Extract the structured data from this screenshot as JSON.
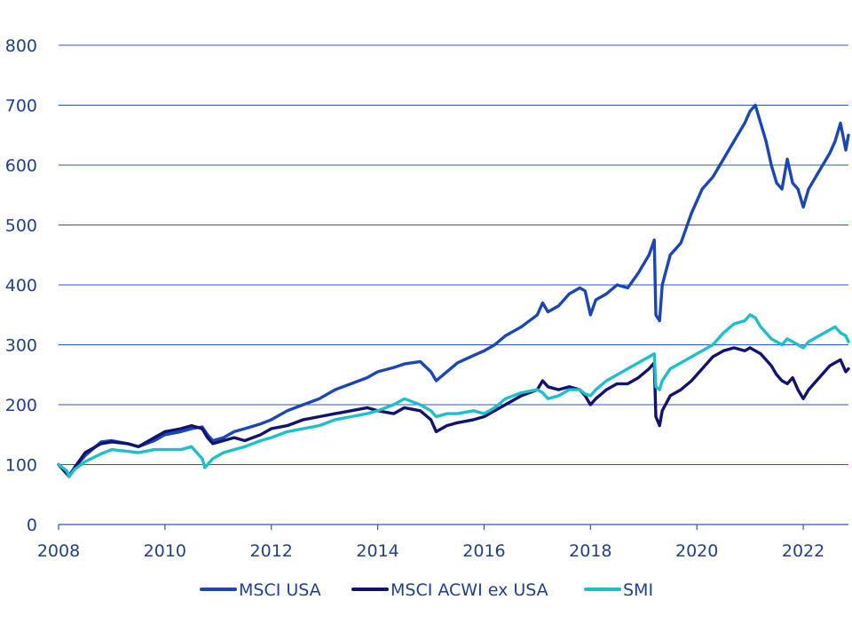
{
  "chart_data": {
    "type": "line",
    "title": "",
    "xlabel": "",
    "ylabel": "",
    "xlim": [
      2008,
      2022.85
    ],
    "ylim": [
      0,
      800
    ],
    "y_ticks": [
      0,
      100,
      200,
      300,
      400,
      500,
      600,
      700,
      800
    ],
    "x_ticks": [
      2008,
      2010,
      2012,
      2014,
      2016,
      2018,
      2020,
      2022
    ],
    "y_tick_labels": [
      "0",
      "100",
      "200",
      "300",
      "400",
      "500",
      "600",
      "700",
      "800"
    ],
    "x_tick_labels": [
      "2008",
      "2010",
      "2012",
      "2014",
      "2016",
      "2018",
      "2020",
      "2022"
    ],
    "grid": "horizontal",
    "legend_position": "bottom",
    "series": [
      {
        "name": "MSCI USA",
        "color": "#1a46b8",
        "points": [
          [
            2008.0,
            100
          ],
          [
            2008.15,
            88
          ],
          [
            2008.2,
            82
          ],
          [
            2008.3,
            95
          ],
          [
            2008.5,
            115
          ],
          [
            2008.8,
            138
          ],
          [
            2009.0,
            140
          ],
          [
            2009.3,
            135
          ],
          [
            2009.5,
            130
          ],
          [
            2009.8,
            140
          ],
          [
            2010.0,
            150
          ],
          [
            2010.3,
            155
          ],
          [
            2010.5,
            160
          ],
          [
            2010.7,
            163
          ],
          [
            2010.8,
            150
          ],
          [
            2010.9,
            140
          ],
          [
            2011.1,
            145
          ],
          [
            2011.3,
            155
          ],
          [
            2011.5,
            160
          ],
          [
            2011.8,
            168
          ],
          [
            2012.0,
            175
          ],
          [
            2012.3,
            190
          ],
          [
            2012.6,
            200
          ],
          [
            2012.9,
            210
          ],
          [
            2013.2,
            225
          ],
          [
            2013.5,
            235
          ],
          [
            2013.8,
            245
          ],
          [
            2014.0,
            255
          ],
          [
            2014.3,
            262
          ],
          [
            2014.5,
            268
          ],
          [
            2014.8,
            272
          ],
          [
            2015.0,
            255
          ],
          [
            2015.1,
            240
          ],
          [
            2015.3,
            255
          ],
          [
            2015.5,
            270
          ],
          [
            2015.8,
            282
          ],
          [
            2016.0,
            290
          ],
          [
            2016.2,
            300
          ],
          [
            2016.4,
            315
          ],
          [
            2016.7,
            330
          ],
          [
            2017.0,
            350
          ],
          [
            2017.1,
            370
          ],
          [
            2017.2,
            355
          ],
          [
            2017.4,
            365
          ],
          [
            2017.6,
            385
          ],
          [
            2017.8,
            395
          ],
          [
            2017.9,
            390
          ],
          [
            2018.0,
            350
          ],
          [
            2018.1,
            375
          ],
          [
            2018.3,
            385
          ],
          [
            2018.5,
            400
          ],
          [
            2018.7,
            395
          ],
          [
            2018.9,
            420
          ],
          [
            2019.1,
            450
          ],
          [
            2019.2,
            475
          ],
          [
            2019.23,
            350
          ],
          [
            2019.3,
            340
          ],
          [
            2019.35,
            400
          ],
          [
            2019.5,
            450
          ],
          [
            2019.7,
            470
          ],
          [
            2019.9,
            520
          ],
          [
            2020.1,
            560
          ],
          [
            2020.3,
            580
          ],
          [
            2020.5,
            610
          ],
          [
            2020.7,
            640
          ],
          [
            2020.9,
            670
          ],
          [
            2021.0,
            690
          ],
          [
            2021.1,
            700
          ],
          [
            2021.2,
            670
          ],
          [
            2021.3,
            640
          ],
          [
            2021.4,
            600
          ],
          [
            2021.5,
            570
          ],
          [
            2021.6,
            560
          ],
          [
            2021.7,
            610
          ],
          [
            2021.8,
            570
          ],
          [
            2021.9,
            560
          ],
          [
            2022.0,
            530
          ],
          [
            2022.1,
            560
          ],
          [
            2022.3,
            590
          ],
          [
            2022.5,
            620
          ],
          [
            2022.6,
            640
          ],
          [
            2022.7,
            670
          ],
          [
            2022.8,
            625
          ],
          [
            2022.85,
            650
          ]
        ]
      },
      {
        "name": "MSCI ACWI ex USA",
        "color": "#121270",
        "points": [
          [
            2008.0,
            100
          ],
          [
            2008.15,
            85
          ],
          [
            2008.2,
            80
          ],
          [
            2008.3,
            95
          ],
          [
            2008.5,
            120
          ],
          [
            2008.8,
            135
          ],
          [
            2009.0,
            138
          ],
          [
            2009.3,
            135
          ],
          [
            2009.5,
            130
          ],
          [
            2009.8,
            145
          ],
          [
            2010.0,
            155
          ],
          [
            2010.3,
            160
          ],
          [
            2010.5,
            165
          ],
          [
            2010.7,
            160
          ],
          [
            2010.8,
            145
          ],
          [
            2010.9,
            135
          ],
          [
            2011.1,
            140
          ],
          [
            2011.3,
            145
          ],
          [
            2011.5,
            140
          ],
          [
            2011.8,
            150
          ],
          [
            2012.0,
            160
          ],
          [
            2012.3,
            165
          ],
          [
            2012.6,
            175
          ],
          [
            2012.9,
            180
          ],
          [
            2013.2,
            185
          ],
          [
            2013.5,
            190
          ],
          [
            2013.8,
            195
          ],
          [
            2014.0,
            190
          ],
          [
            2014.3,
            185
          ],
          [
            2014.5,
            195
          ],
          [
            2014.8,
            190
          ],
          [
            2015.0,
            175
          ],
          [
            2015.1,
            155
          ],
          [
            2015.3,
            165
          ],
          [
            2015.5,
            170
          ],
          [
            2015.8,
            175
          ],
          [
            2016.0,
            180
          ],
          [
            2016.2,
            190
          ],
          [
            2016.4,
            200
          ],
          [
            2016.7,
            215
          ],
          [
            2017.0,
            225
          ],
          [
            2017.1,
            240
          ],
          [
            2017.2,
            230
          ],
          [
            2017.4,
            225
          ],
          [
            2017.6,
            230
          ],
          [
            2017.8,
            225
          ],
          [
            2017.9,
            215
          ],
          [
            2018.0,
            200
          ],
          [
            2018.1,
            210
          ],
          [
            2018.3,
            225
          ],
          [
            2018.5,
            235
          ],
          [
            2018.7,
            235
          ],
          [
            2018.9,
            245
          ],
          [
            2019.1,
            260
          ],
          [
            2019.2,
            270
          ],
          [
            2019.23,
            180
          ],
          [
            2019.3,
            165
          ],
          [
            2019.35,
            190
          ],
          [
            2019.5,
            215
          ],
          [
            2019.7,
            225
          ],
          [
            2019.9,
            240
          ],
          [
            2020.1,
            260
          ],
          [
            2020.3,
            280
          ],
          [
            2020.5,
            290
          ],
          [
            2020.7,
            295
          ],
          [
            2020.9,
            290
          ],
          [
            2021.0,
            295
          ],
          [
            2021.1,
            290
          ],
          [
            2021.2,
            285
          ],
          [
            2021.3,
            275
          ],
          [
            2021.4,
            265
          ],
          [
            2021.5,
            250
          ],
          [
            2021.6,
            240
          ],
          [
            2021.7,
            235
          ],
          [
            2021.8,
            245
          ],
          [
            2021.9,
            225
          ],
          [
            2022.0,
            210
          ],
          [
            2022.1,
            225
          ],
          [
            2022.3,
            245
          ],
          [
            2022.5,
            265
          ],
          [
            2022.6,
            270
          ],
          [
            2022.7,
            275
          ],
          [
            2022.8,
            255
          ],
          [
            2022.85,
            260
          ]
        ]
      },
      {
        "name": "SMI",
        "color": "#1ebfc8",
        "points": [
          [
            2008.0,
            100
          ],
          [
            2008.15,
            90
          ],
          [
            2008.2,
            80
          ],
          [
            2008.3,
            92
          ],
          [
            2008.5,
            105
          ],
          [
            2008.8,
            118
          ],
          [
            2009.0,
            125
          ],
          [
            2009.3,
            122
          ],
          [
            2009.5,
            120
          ],
          [
            2009.8,
            125
          ],
          [
            2010.0,
            125
          ],
          [
            2010.3,
            125
          ],
          [
            2010.5,
            130
          ],
          [
            2010.7,
            110
          ],
          [
            2010.75,
            95
          ],
          [
            2010.9,
            110
          ],
          [
            2011.1,
            120
          ],
          [
            2011.3,
            125
          ],
          [
            2011.5,
            130
          ],
          [
            2011.8,
            140
          ],
          [
            2012.0,
            145
          ],
          [
            2012.3,
            155
          ],
          [
            2012.6,
            160
          ],
          [
            2012.9,
            165
          ],
          [
            2013.2,
            175
          ],
          [
            2013.5,
            180
          ],
          [
            2013.8,
            185
          ],
          [
            2014.0,
            190
          ],
          [
            2014.3,
            200
          ],
          [
            2014.5,
            210
          ],
          [
            2014.8,
            200
          ],
          [
            2015.0,
            190
          ],
          [
            2015.1,
            180
          ],
          [
            2015.3,
            185
          ],
          [
            2015.5,
            185
          ],
          [
            2015.8,
            190
          ],
          [
            2016.0,
            185
          ],
          [
            2016.2,
            195
          ],
          [
            2016.4,
            210
          ],
          [
            2016.7,
            220
          ],
          [
            2017.0,
            225
          ],
          [
            2017.1,
            220
          ],
          [
            2017.2,
            210
          ],
          [
            2017.4,
            215
          ],
          [
            2017.6,
            225
          ],
          [
            2017.8,
            225
          ],
          [
            2017.9,
            218
          ],
          [
            2018.0,
            215
          ],
          [
            2018.1,
            225
          ],
          [
            2018.3,
            240
          ],
          [
            2018.5,
            250
          ],
          [
            2018.7,
            260
          ],
          [
            2018.9,
            270
          ],
          [
            2019.1,
            280
          ],
          [
            2019.2,
            285
          ],
          [
            2019.23,
            230
          ],
          [
            2019.3,
            225
          ],
          [
            2019.35,
            240
          ],
          [
            2019.5,
            260
          ],
          [
            2019.7,
            270
          ],
          [
            2019.9,
            280
          ],
          [
            2020.1,
            290
          ],
          [
            2020.3,
            300
          ],
          [
            2020.5,
            320
          ],
          [
            2020.7,
            335
          ],
          [
            2020.9,
            340
          ],
          [
            2021.0,
            350
          ],
          [
            2021.1,
            345
          ],
          [
            2021.2,
            330
          ],
          [
            2021.3,
            320
          ],
          [
            2021.4,
            310
          ],
          [
            2021.5,
            305
          ],
          [
            2021.6,
            300
          ],
          [
            2021.7,
            310
          ],
          [
            2021.8,
            305
          ],
          [
            2021.9,
            300
          ],
          [
            2022.0,
            295
          ],
          [
            2022.1,
            305
          ],
          [
            2022.3,
            315
          ],
          [
            2022.5,
            325
          ],
          [
            2022.6,
            330
          ],
          [
            2022.7,
            320
          ],
          [
            2022.8,
            315
          ],
          [
            2022.85,
            305
          ]
        ]
      }
    ]
  }
}
